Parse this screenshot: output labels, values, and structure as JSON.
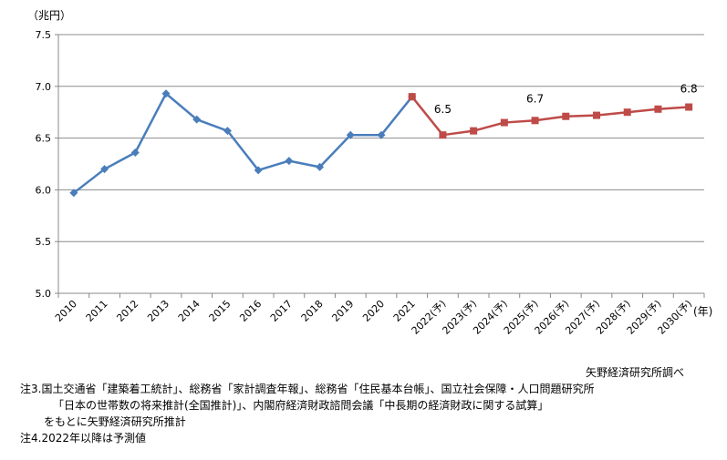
{
  "chart_data": {
    "type": "line",
    "unit_label": "（兆円）",
    "x_unit_label": "(年)",
    "categories": [
      "2010",
      "2011",
      "2012",
      "2013",
      "2014",
      "2015",
      "2016",
      "2017",
      "2018",
      "2019",
      "2020",
      "2021",
      "2022(予)",
      "2023(予)",
      "2024(予)",
      "2025(予)",
      "2026(予)",
      "2027(予)",
      "2028(予)",
      "2029(予)",
      "2030(予)"
    ],
    "ylim": [
      5.0,
      7.5
    ],
    "yticks": [
      "5.0",
      "5.5",
      "6.0",
      "6.5",
      "7.0",
      "7.5"
    ],
    "grid": true,
    "series": [
      {
        "color": "#4a7ebb",
        "marker": "diamond",
        "values": [
          5.97,
          6.2,
          6.36,
          6.93,
          6.68,
          6.57,
          6.19,
          6.28,
          6.22,
          6.53,
          6.53,
          6.9,
          null,
          null,
          null,
          null,
          null,
          null,
          null,
          null,
          null
        ]
      },
      {
        "color": "#be4b48",
        "marker": "square",
        "values": [
          null,
          null,
          null,
          null,
          null,
          null,
          null,
          null,
          null,
          null,
          null,
          6.9,
          6.53,
          6.57,
          6.65,
          6.67,
          6.71,
          6.72,
          6.75,
          6.78,
          6.8
        ]
      }
    ],
    "data_labels": [
      {
        "index": 12,
        "text": "6.5"
      },
      {
        "index": 15,
        "text": "6.7"
      },
      {
        "index": 20,
        "text": "6.8"
      }
    ]
  },
  "source": "矢野経済研究所調べ",
  "notes": [
    "注3.国土交通省「建築着工統計」、総務省「家計調査年報」、総務省「住民基本台帳」、国立社会保障・人口問題研究所",
    "「日本の世帯数の将来推計(全国推計)」、内閣府経済財政諮問会議「中長期の経済財政に関する試算」",
    "をもとに矢野経済研究所推計",
    "注4.2022年以降は予測値"
  ]
}
